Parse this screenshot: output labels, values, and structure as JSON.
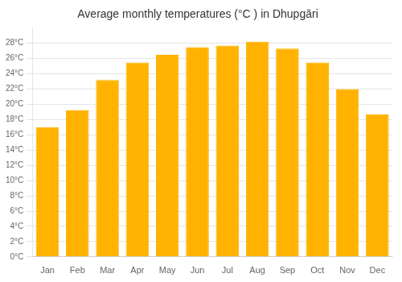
{
  "chart_data": {
    "type": "bar",
    "title": "Average monthly temperatures (°C ) in Dhupgāri",
    "categories": [
      "Jan",
      "Feb",
      "Mar",
      "Apr",
      "May",
      "Jun",
      "Jul",
      "Aug",
      "Sep",
      "Oct",
      "Nov",
      "Dec"
    ],
    "values": [
      17,
      19.2,
      23.2,
      25.5,
      26.5,
      27.5,
      27.7,
      28.2,
      27.3,
      25.5,
      22,
      18.7
    ],
    "color": "#FFB300",
    "ylim": [
      0,
      30
    ],
    "yticks": [
      {
        "value": 0,
        "label": "0°C"
      },
      {
        "value": 2,
        "label": "2°C"
      },
      {
        "value": 4,
        "label": "4°C"
      },
      {
        "value": 6,
        "label": "6°C"
      },
      {
        "value": 8,
        "label": "8°C"
      },
      {
        "value": 10,
        "label": "10°C"
      },
      {
        "value": 12,
        "label": "12°C"
      },
      {
        "value": 14,
        "label": "14°C"
      },
      {
        "value": 16,
        "label": "16°C"
      },
      {
        "value": 18,
        "label": "18°C"
      },
      {
        "value": 20,
        "label": "20°C"
      },
      {
        "value": 22,
        "label": "22°C"
      },
      {
        "value": 24,
        "label": "24°C"
      },
      {
        "value": 26,
        "label": "26°C"
      },
      {
        "value": 28,
        "label": "28°C"
      }
    ],
    "grid": true
  }
}
